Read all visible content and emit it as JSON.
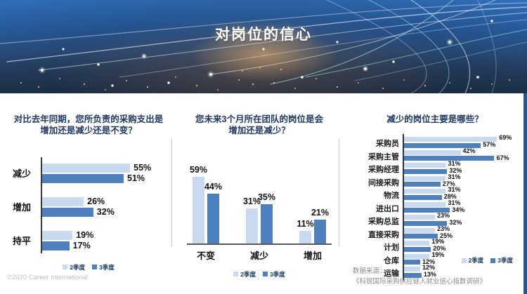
{
  "header": {
    "title": "对岗位的信心"
  },
  "colors": {
    "series_light": "#C9DAF0",
    "series_dark": "#4D80BE",
    "title_text": "#1F3864"
  },
  "legend": {
    "items": [
      {
        "label": "2季度",
        "color": "#C9DAF0"
      },
      {
        "label": "3季度",
        "color": "#4D80BE"
      }
    ]
  },
  "chart_data": [
    {
      "type": "bar",
      "orientation": "horizontal",
      "title": "对比去年同期，您所负责的采购支出是增加还是减少还是不变？",
      "title_lines": [
        "对比去年同期，您所负责的采购支出是",
        "增加还是减少还是不变？"
      ],
      "categories": [
        "减少",
        "增加",
        "持平"
      ],
      "series": [
        {
          "name": "2季度",
          "values": [
            55,
            26,
            19
          ]
        },
        {
          "name": "3季度",
          "values": [
            51,
            32,
            17
          ]
        }
      ],
      "value_suffix": "%",
      "xlim": [
        0,
        80
      ],
      "grid": false,
      "legend_position": "bottom-center"
    },
    {
      "type": "bar",
      "orientation": "vertical",
      "title": "您未来3个月所在团队的岗位是会增加还是减少？",
      "title_lines": [
        "您未来3个月所在团队的岗位是会",
        "增加还是减少？"
      ],
      "categories": [
        "不变",
        "减少",
        "增加"
      ],
      "series": [
        {
          "name": "2季度",
          "values": [
            59,
            31,
            11
          ]
        },
        {
          "name": "3季度",
          "values": [
            44,
            35,
            21
          ]
        }
      ],
      "value_suffix": "%",
      "ylim": [
        0,
        75
      ],
      "grid": false,
      "legend_position": "bottom-center"
    },
    {
      "type": "bar",
      "orientation": "horizontal",
      "title": "减少的岗位主要是哪些？",
      "title_lines": [
        "减少的岗位主要是哪些？"
      ],
      "categories": [
        "采购员",
        "采购主管",
        "采购经理",
        "间接采购",
        "物流",
        "进出口",
        "采购总监",
        "直接采购",
        "计划",
        "仓库",
        "运输"
      ],
      "series": [
        {
          "name": "2季度",
          "values": [
            69,
            42,
            31,
            31,
            31,
            31,
            23,
            23,
            19,
            19,
            12
          ]
        },
        {
          "name": "3季度",
          "values": [
            57,
            67,
            32,
            27,
            28,
            34,
            32,
            25,
            20,
            12,
            13
          ]
        }
      ],
      "value_suffix": "%",
      "xlim": [
        0,
        85
      ],
      "grid": false,
      "legend_position": "bottom-right"
    }
  ],
  "source": {
    "label": "数据来源：",
    "name": "《科锐国际采购供应链人就业信心指数调研》"
  },
  "copyright": "©2020 Career International"
}
